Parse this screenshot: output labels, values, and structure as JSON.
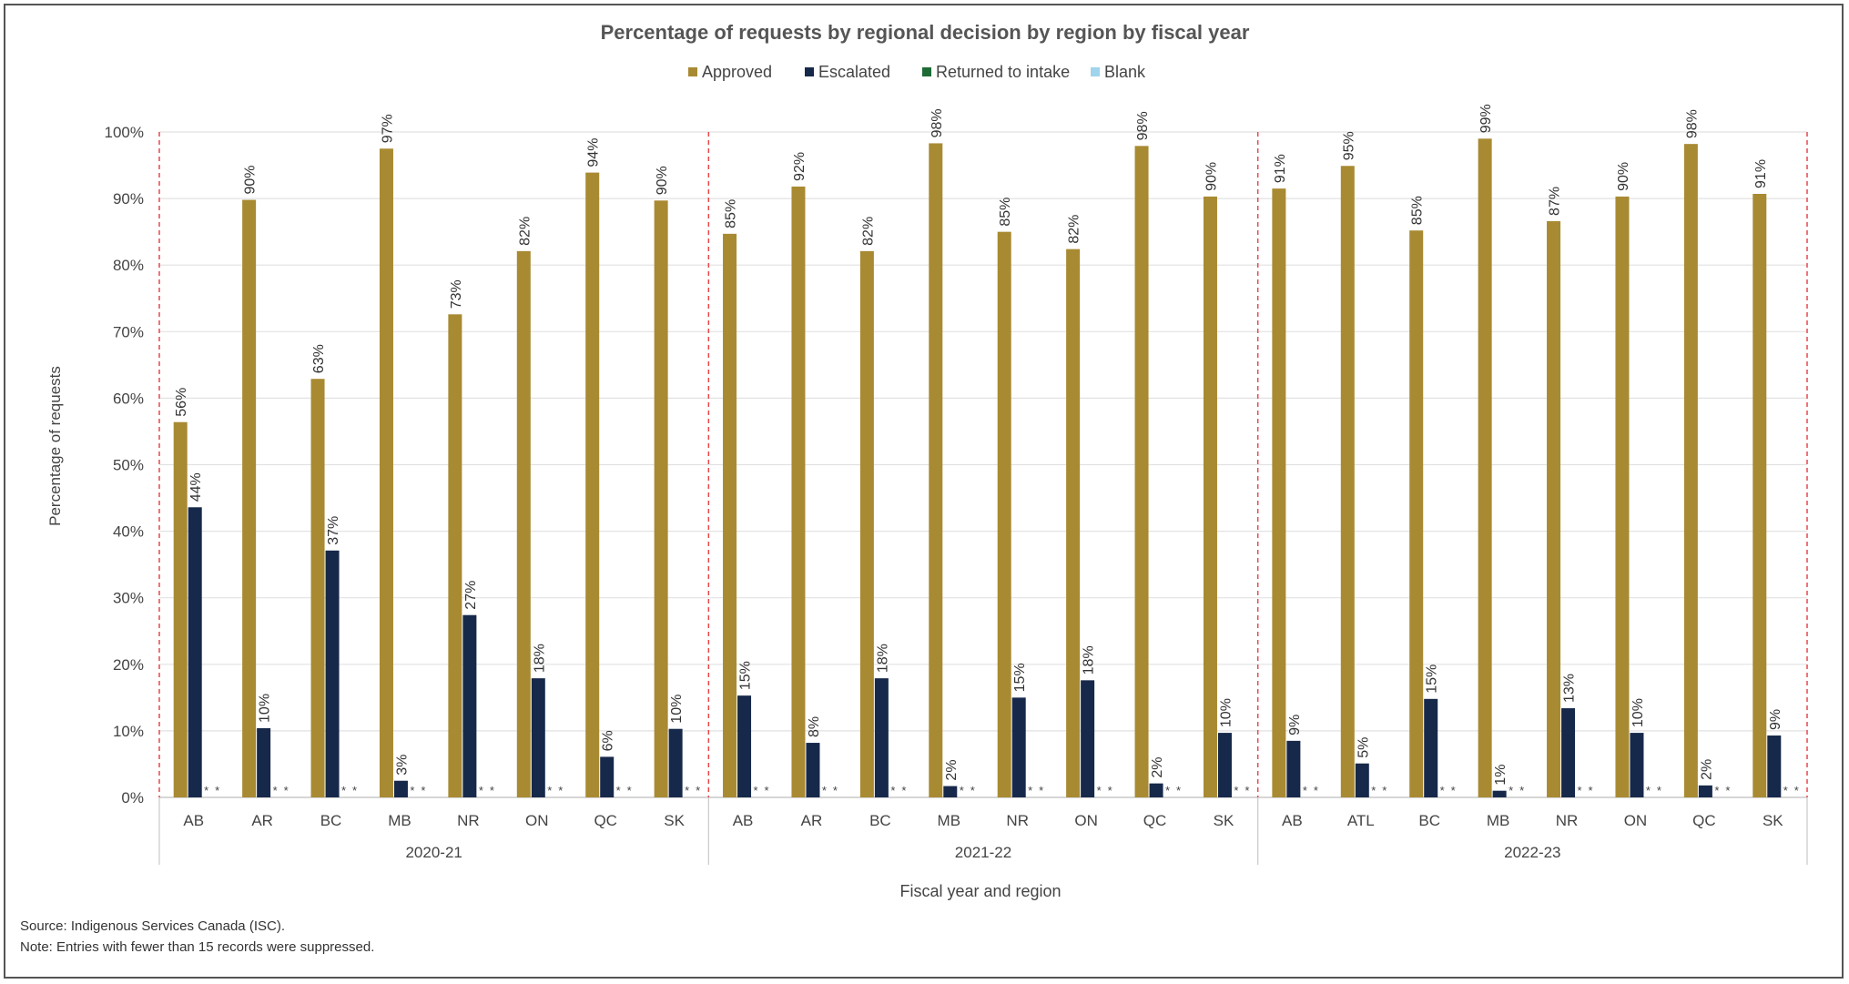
{
  "chart_data": {
    "type": "bar",
    "title": "Percentage of requests by regional decision by region by fiscal year",
    "xlabel": "Fiscal year and region",
    "ylabel": "Percentage of requests",
    "ylim": [
      0,
      100
    ],
    "y_ticks": [
      "0%",
      "10%",
      "20%",
      "30%",
      "40%",
      "50%",
      "60%",
      "70%",
      "80%",
      "90%",
      "100%"
    ],
    "grid": true,
    "legend_position": "top-center",
    "legend": [
      "Approved",
      "Escalated",
      "Returned to intake",
      "Blank"
    ],
    "series_colors": [
      "#a88a32",
      "#17294a",
      "#1e6b35",
      "#9fd4ec"
    ],
    "suppressed_marker": "*",
    "groups": [
      {
        "label": "2020-21",
        "categories": [
          "AB",
          "AR",
          "BC",
          "MB",
          "NR",
          "ON",
          "QC",
          "SK"
        ],
        "series": [
          {
            "name": "Approved",
            "values": [
              56.4,
              89.8,
              62.9,
              97.5,
              72.6,
              82.1,
              93.9,
              89.7
            ],
            "labels": [
              "56%",
              "90%",
              "63%",
              "97%",
              "73%",
              "82%",
              "94%",
              "90%"
            ]
          },
          {
            "name": "Escalated",
            "values": [
              43.6,
              10.4,
              37.1,
              2.5,
              27.4,
              17.9,
              6.1,
              10.3
            ],
            "labels": [
              "44%",
              "10%",
              "37%",
              "3%",
              "27%",
              "18%",
              "6%",
              "10%"
            ]
          }
        ]
      },
      {
        "label": "2021-22",
        "categories": [
          "AB",
          "AR",
          "BC",
          "MB",
          "NR",
          "ON",
          "QC",
          "SK"
        ],
        "series": [
          {
            "name": "Approved",
            "values": [
              84.7,
              91.8,
              82.1,
              98.3,
              85.0,
              82.4,
              97.9,
              90.3
            ],
            "labels": [
              "85%",
              "92%",
              "82%",
              "98%",
              "85%",
              "82%",
              "98%",
              "90%"
            ]
          },
          {
            "name": "Escalated",
            "values": [
              15.3,
              8.2,
              17.9,
              1.7,
              15.0,
              17.6,
              2.1,
              9.7
            ],
            "labels": [
              "15%",
              "8%",
              "18%",
              "2%",
              "15%",
              "18%",
              "2%",
              "10%"
            ]
          }
        ]
      },
      {
        "label": "2022-23",
        "categories": [
          "AB",
          "ATL",
          "BC",
          "MB",
          "NR",
          "ON",
          "QC",
          "SK"
        ],
        "series": [
          {
            "name": "Approved",
            "values": [
              91.5,
              94.9,
              85.2,
              99.0,
              86.6,
              90.3,
              98.2,
              90.7
            ],
            "labels": [
              "91%",
              "95%",
              "85%",
              "99%",
              "87%",
              "90%",
              "98%",
              "91%"
            ]
          },
          {
            "name": "Escalated",
            "values": [
              8.5,
              5.1,
              14.8,
              1.0,
              13.4,
              9.7,
              1.8,
              9.3
            ],
            "labels": [
              "9%",
              "5%",
              "15%",
              "1%",
              "13%",
              "10%",
              "2%",
              "9%"
            ]
          }
        ]
      }
    ]
  },
  "footnotes": {
    "source": "Source: Indigenous Services Canada (ISC).",
    "note": "Note: Entries with fewer than 15 records were suppressed."
  }
}
